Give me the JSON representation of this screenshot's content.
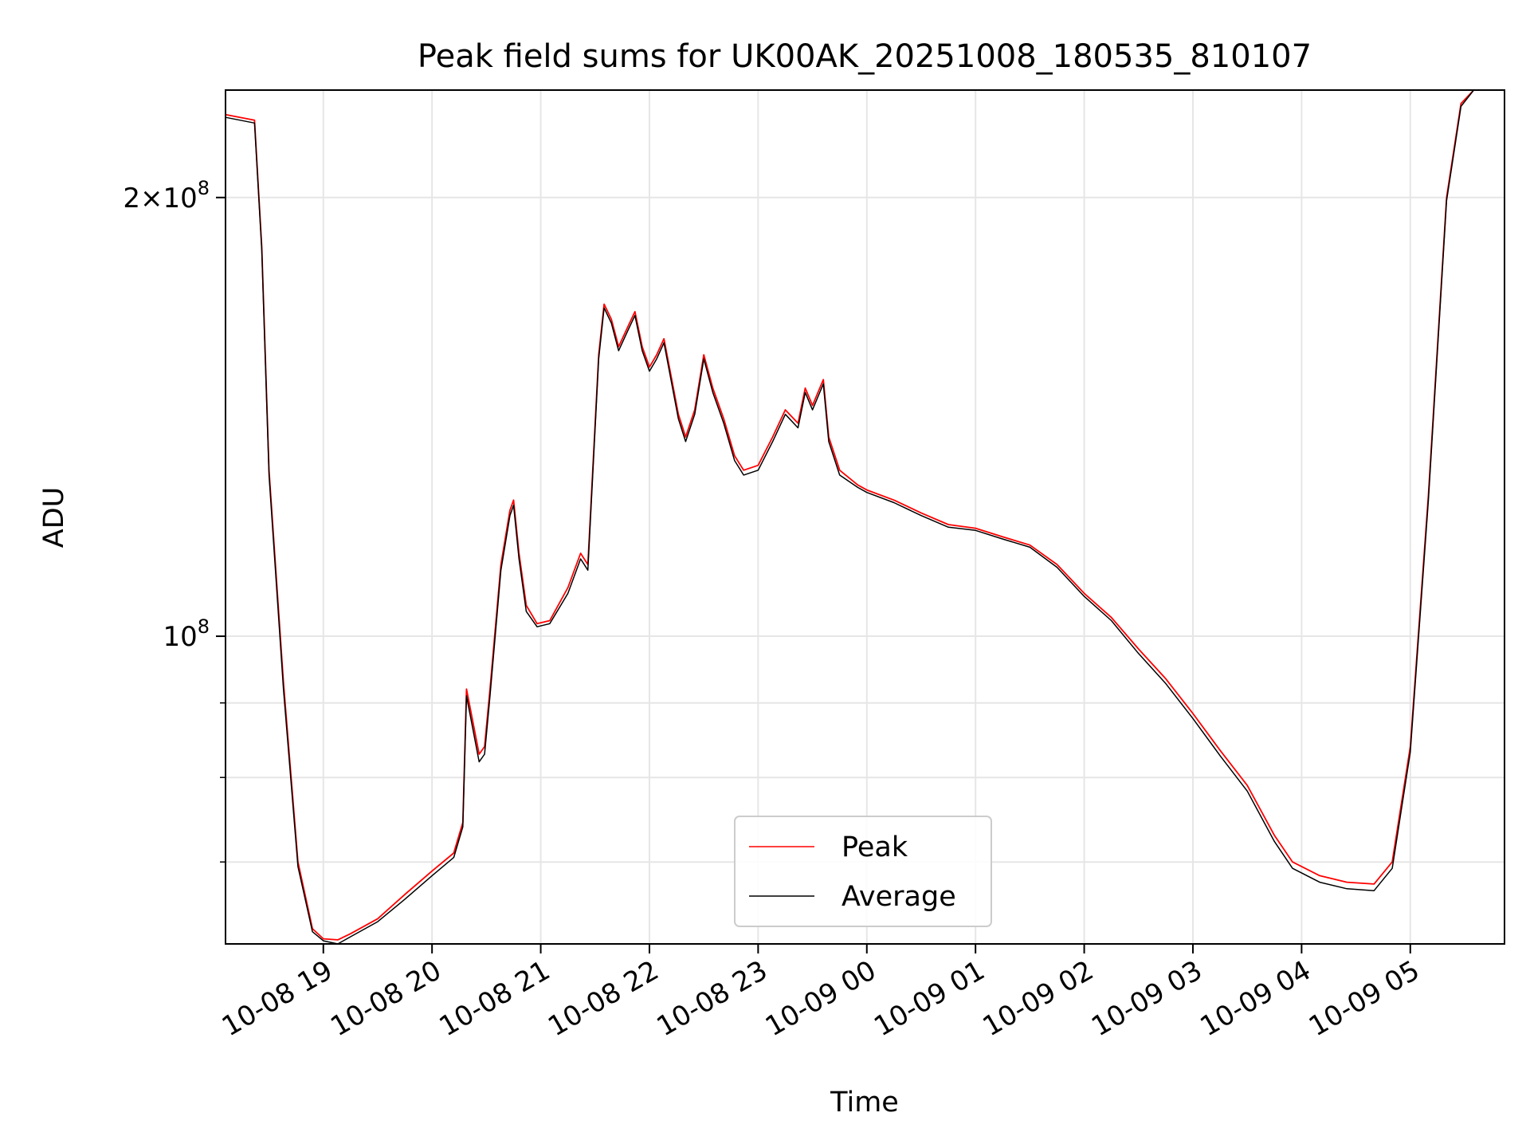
{
  "chart_data": {
    "type": "line",
    "title": "Peak field sums for UK00AK_20251008_180535_810107",
    "xlabel": "Time",
    "ylabel": "ADU",
    "yscale": "log",
    "ylim": [
      61500000,
      237000000
    ],
    "xlim": [
      "2025-10-08 18:06",
      "2025-10-09 05:52"
    ],
    "grid": true,
    "legend_position": "lower-center",
    "x_ticks": [
      {
        "t": "2025-10-08 19:00",
        "label": "10-08 19"
      },
      {
        "t": "2025-10-08 20:00",
        "label": "10-08 20"
      },
      {
        "t": "2025-10-08 21:00",
        "label": "10-08 21"
      },
      {
        "t": "2025-10-08 22:00",
        "label": "10-08 22"
      },
      {
        "t": "2025-10-08 23:00",
        "label": "10-08 23"
      },
      {
        "t": "2025-10-09 00:00",
        "label": "10-09 00"
      },
      {
        "t": "2025-10-09 01:00",
        "label": "10-09 01"
      },
      {
        "t": "2025-10-09 02:00",
        "label": "10-09 02"
      },
      {
        "t": "2025-10-09 03:00",
        "label": "10-09 03"
      },
      {
        "t": "2025-10-09 04:00",
        "label": "10-09 04"
      },
      {
        "t": "2025-10-09 05:00",
        "label": "10-09 05"
      }
    ],
    "y_major_ticks": [
      {
        "v": 100000000,
        "base": "10",
        "exp": "8",
        "prefix": ""
      },
      {
        "v": 200000000,
        "base": "10",
        "exp": "8",
        "prefix": "2×"
      }
    ],
    "y_minor_ticks": [
      70000000,
      80000000,
      90000000
    ],
    "series": [
      {
        "name": "Peak",
        "color": "#ff0000",
        "points": [
          [
            "2025-10-08 18:06",
            228000000
          ],
          [
            "2025-10-08 18:22",
            226000000
          ],
          [
            "2025-10-08 18:26",
            185000000
          ],
          [
            "2025-10-08 18:30",
            130000000
          ],
          [
            "2025-10-08 18:38",
            93000000
          ],
          [
            "2025-10-08 18:46",
            70000000
          ],
          [
            "2025-10-08 18:54",
            63000000
          ],
          [
            "2025-10-08 19:00",
            62000000
          ],
          [
            "2025-10-08 19:08",
            61900000
          ],
          [
            "2025-10-08 19:15",
            62500000
          ],
          [
            "2025-10-08 19:30",
            64000000
          ],
          [
            "2025-10-08 19:45",
            66500000
          ],
          [
            "2025-10-08 20:00",
            69000000
          ],
          [
            "2025-10-08 20:12",
            71000000
          ],
          [
            "2025-10-08 20:17",
            74500000
          ],
          [
            "2025-10-08 20:19",
            92000000
          ],
          [
            "2025-10-08 20:26",
            83000000
          ],
          [
            "2025-10-08 20:29",
            84000000
          ],
          [
            "2025-10-08 20:32",
            92000000
          ],
          [
            "2025-10-08 20:38",
            112000000
          ],
          [
            "2025-10-08 20:43",
            122000000
          ],
          [
            "2025-10-08 20:45",
            124000000
          ],
          [
            "2025-10-08 20:48",
            114000000
          ],
          [
            "2025-10-08 20:52",
            105000000
          ],
          [
            "2025-10-08 20:58",
            102000000
          ],
          [
            "2025-10-08 21:05",
            102500000
          ],
          [
            "2025-10-08 21:15",
            108000000
          ],
          [
            "2025-10-08 21:22",
            114000000
          ],
          [
            "2025-10-08 21:26",
            112000000
          ],
          [
            "2025-10-08 21:28",
            125000000
          ],
          [
            "2025-10-08 21:32",
            156000000
          ],
          [
            "2025-10-08 21:35",
            169000000
          ],
          [
            "2025-10-08 21:39",
            165000000
          ],
          [
            "2025-10-08 21:43",
            158000000
          ],
          [
            "2025-10-08 21:48",
            163000000
          ],
          [
            "2025-10-08 21:52",
            167000000
          ],
          [
            "2025-10-08 21:56",
            158000000
          ],
          [
            "2025-10-08 22:00",
            153000000
          ],
          [
            "2025-10-08 22:04",
            156000000
          ],
          [
            "2025-10-08 22:08",
            160000000
          ],
          [
            "2025-10-08 22:11",
            153000000
          ],
          [
            "2025-10-08 22:16",
            142000000
          ],
          [
            "2025-10-08 22:20",
            137000000
          ],
          [
            "2025-10-08 22:25",
            143000000
          ],
          [
            "2025-10-08 22:30",
            156000000
          ],
          [
            "2025-10-08 22:35",
            148000000
          ],
          [
            "2025-10-08 22:41",
            141000000
          ],
          [
            "2025-10-08 22:47",
            133000000
          ],
          [
            "2025-10-08 22:52",
            130000000
          ],
          [
            "2025-10-08 23:00",
            131000000
          ],
          [
            "2025-10-08 23:08",
            137000000
          ],
          [
            "2025-10-08 23:15",
            143000000
          ],
          [
            "2025-10-08 23:22",
            140000000
          ],
          [
            "2025-10-08 23:26",
            148000000
          ],
          [
            "2025-10-08 23:30",
            144000000
          ],
          [
            "2025-10-08 23:36",
            150000000
          ],
          [
            "2025-10-08 23:39",
            137000000
          ],
          [
            "2025-10-08 23:45",
            130000000
          ],
          [
            "2025-10-08 23:55",
            127000000
          ],
          [
            "2025-10-09 00:00",
            126000000
          ],
          [
            "2025-10-09 00:15",
            124000000
          ],
          [
            "2025-10-09 00:30",
            121500000
          ],
          [
            "2025-10-09 00:45",
            119300000
          ],
          [
            "2025-10-09 01:00",
            118600000
          ],
          [
            "2025-10-09 01:15",
            117000000
          ],
          [
            "2025-10-09 01:30",
            115500000
          ],
          [
            "2025-10-09 01:45",
            112000000
          ],
          [
            "2025-10-09 02:00",
            107000000
          ],
          [
            "2025-10-09 02:15",
            103000000
          ],
          [
            "2025-10-09 02:30",
            98000000
          ],
          [
            "2025-10-09 02:45",
            93500000
          ],
          [
            "2025-10-09 03:00",
            88500000
          ],
          [
            "2025-10-09 03:15",
            83500000
          ],
          [
            "2025-10-09 03:30",
            79000000
          ],
          [
            "2025-10-09 03:45",
            73000000
          ],
          [
            "2025-10-09 03:55",
            70000000
          ],
          [
            "2025-10-09 04:10",
            68500000
          ],
          [
            "2025-10-09 04:25",
            67800000
          ],
          [
            "2025-10-09 04:40",
            67600000
          ],
          [
            "2025-10-09 04:50",
            70000000
          ],
          [
            "2025-10-09 05:00",
            84000000
          ],
          [
            "2025-10-09 05:10",
            125000000
          ],
          [
            "2025-10-09 05:20",
            200000000
          ],
          [
            "2025-10-09 05:28",
            232000000
          ],
          [
            "2025-10-09 05:35",
            237000000
          ],
          [
            "2025-10-09 05:52",
            237000000
          ]
        ]
      },
      {
        "name": "Average",
        "color": "#000000",
        "points": [
          [
            "2025-10-08 18:06",
            227000000
          ],
          [
            "2025-10-08 18:22",
            225000000
          ],
          [
            "2025-10-08 18:26",
            184000000
          ],
          [
            "2025-10-08 18:30",
            129000000
          ],
          [
            "2025-10-08 18:38",
            92000000
          ],
          [
            "2025-10-08 18:46",
            69500000
          ],
          [
            "2025-10-08 18:54",
            62700000
          ],
          [
            "2025-10-08 19:00",
            61800000
          ],
          [
            "2025-10-08 19:08",
            61500000
          ],
          [
            "2025-10-08 19:15",
            62200000
          ],
          [
            "2025-10-08 19:30",
            63700000
          ],
          [
            "2025-10-08 19:45",
            66000000
          ],
          [
            "2025-10-08 20:00",
            68500000
          ],
          [
            "2025-10-08 20:12",
            70500000
          ],
          [
            "2025-10-08 20:17",
            74000000
          ],
          [
            "2025-10-08 20:19",
            91000000
          ],
          [
            "2025-10-08 20:26",
            82000000
          ],
          [
            "2025-10-08 20:29",
            83000000
          ],
          [
            "2025-10-08 20:32",
            91000000
          ],
          [
            "2025-10-08 20:38",
            111000000
          ],
          [
            "2025-10-08 20:43",
            121000000
          ],
          [
            "2025-10-08 20:45",
            123000000
          ],
          [
            "2025-10-08 20:48",
            113000000
          ],
          [
            "2025-10-08 20:52",
            104000000
          ],
          [
            "2025-10-08 20:58",
            101500000
          ],
          [
            "2025-10-08 21:05",
            102000000
          ],
          [
            "2025-10-08 21:15",
            107000000
          ],
          [
            "2025-10-08 21:22",
            113000000
          ],
          [
            "2025-10-08 21:26",
            111000000
          ],
          [
            "2025-10-08 21:28",
            124000000
          ],
          [
            "2025-10-08 21:32",
            155000000
          ],
          [
            "2025-10-08 21:35",
            168000000
          ],
          [
            "2025-10-08 21:39",
            164000000
          ],
          [
            "2025-10-08 21:43",
            157000000
          ],
          [
            "2025-10-08 21:48",
            162000000
          ],
          [
            "2025-10-08 21:52",
            166000000
          ],
          [
            "2025-10-08 21:56",
            157000000
          ],
          [
            "2025-10-08 22:00",
            152000000
          ],
          [
            "2025-10-08 22:04",
            155000000
          ],
          [
            "2025-10-08 22:08",
            159000000
          ],
          [
            "2025-10-08 22:11",
            152000000
          ],
          [
            "2025-10-08 22:16",
            141000000
          ],
          [
            "2025-10-08 22:20",
            136000000
          ],
          [
            "2025-10-08 22:25",
            142000000
          ],
          [
            "2025-10-08 22:30",
            155000000
          ],
          [
            "2025-10-08 22:35",
            147000000
          ],
          [
            "2025-10-08 22:41",
            140000000
          ],
          [
            "2025-10-08 22:47",
            132000000
          ],
          [
            "2025-10-08 22:52",
            129000000
          ],
          [
            "2025-10-08 23:00",
            130000000
          ],
          [
            "2025-10-08 23:08",
            136000000
          ],
          [
            "2025-10-08 23:15",
            142000000
          ],
          [
            "2025-10-08 23:22",
            139000000
          ],
          [
            "2025-10-08 23:26",
            147000000
          ],
          [
            "2025-10-08 23:30",
            143000000
          ],
          [
            "2025-10-08 23:36",
            149000000
          ],
          [
            "2025-10-08 23:39",
            136000000
          ],
          [
            "2025-10-08 23:45",
            129000000
          ],
          [
            "2025-10-08 23:55",
            126500000
          ],
          [
            "2025-10-09 00:00",
            125500000
          ],
          [
            "2025-10-09 00:15",
            123500000
          ],
          [
            "2025-10-09 00:30",
            121000000
          ],
          [
            "2025-10-09 00:45",
            118800000
          ],
          [
            "2025-10-09 01:00",
            118200000
          ],
          [
            "2025-10-09 01:15",
            116600000
          ],
          [
            "2025-10-09 01:30",
            115100000
          ],
          [
            "2025-10-09 01:45",
            111500000
          ],
          [
            "2025-10-09 02:00",
            106500000
          ],
          [
            "2025-10-09 02:15",
            102500000
          ],
          [
            "2025-10-09 02:30",
            97300000
          ],
          [
            "2025-10-09 02:45",
            92800000
          ],
          [
            "2025-10-09 03:00",
            87800000
          ],
          [
            "2025-10-09 03:15",
            82800000
          ],
          [
            "2025-10-09 03:30",
            78300000
          ],
          [
            "2025-10-09 03:45",
            72300000
          ],
          [
            "2025-10-09 03:55",
            69300000
          ],
          [
            "2025-10-09 04:10",
            67800000
          ],
          [
            "2025-10-09 04:25",
            67100000
          ],
          [
            "2025-10-09 04:40",
            66900000
          ],
          [
            "2025-10-09 04:50",
            69300000
          ],
          [
            "2025-10-09 05:00",
            83300000
          ],
          [
            "2025-10-09 05:10",
            124000000
          ],
          [
            "2025-10-09 05:20",
            199000000
          ],
          [
            "2025-10-09 05:28",
            231000000
          ],
          [
            "2025-10-09 05:35",
            237000000
          ],
          [
            "2025-10-09 05:52",
            237000000
          ]
        ]
      }
    ]
  }
}
